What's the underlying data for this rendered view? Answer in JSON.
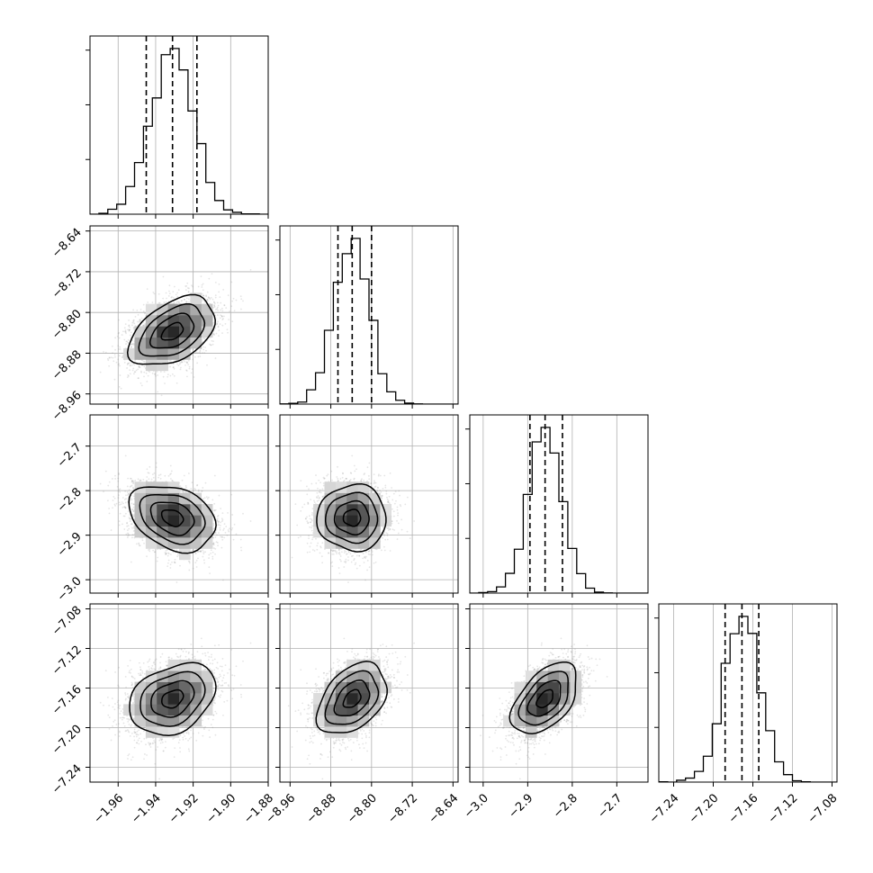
{
  "chart_data": {
    "type": "corner",
    "title": "",
    "parameters": [
      {
        "index": 0,
        "range": [
          -1.975,
          -1.88
        ],
        "median": -1.931,
        "q16": -1.945,
        "q84": -1.918,
        "sigma": 0.0115,
        "ticks": [
          -1.96,
          -1.94,
          -1.92,
          -1.9,
          -1.88
        ],
        "tick_labels": [
          "−1.96",
          "−1.94",
          "−1.92",
          "−1.90",
          "−1.88"
        ]
      },
      {
        "index": 1,
        "range": [
          -8.98,
          -8.63
        ],
        "median": -8.838,
        "q16": -8.866,
        "q84": -8.8,
        "sigma": 0.034,
        "ticks": [
          -8.96,
          -8.88,
          -8.8,
          -8.72,
          -8.64
        ],
        "tick_labels": [
          "−8.96",
          "−8.88",
          "−8.80",
          "−8.72",
          "−8.64"
        ]
      },
      {
        "index": 2,
        "range": [
          -3.03,
          -2.63
        ],
        "median": -2.861,
        "q16": -2.895,
        "q84": -2.822,
        "sigma": 0.037,
        "ticks": [
          -3.0,
          -2.9,
          -2.8,
          -2.7
        ],
        "tick_labels": [
          "−3.0",
          "−2.9",
          "−2.8",
          "−2.7"
        ]
      },
      {
        "index": 3,
        "range": [
          -7.255,
          -7.075
        ],
        "median": -7.171,
        "q16": -7.188,
        "q84": -7.154,
        "sigma": 0.018,
        "ticks": [
          -7.24,
          -7.2,
          -7.16,
          -7.12,
          -7.08
        ],
        "tick_labels": [
          "−7.24",
          "−7.20",
          "−7.16",
          "−7.12",
          "−7.08"
        ]
      }
    ],
    "correlations": {
      "1,0": 0.45,
      "2,0": -0.3,
      "2,1": 0.0,
      "3,0": 0.3,
      "3,1": 0.4,
      "3,2": 0.5
    },
    "hist_bins": 20,
    "contour_levels_sigma": [
      0.5,
      1.0,
      1.5,
      2.0
    ],
    "grid": true,
    "colors": {
      "points": "#888888",
      "lines": "#000000",
      "grid": "#b0b0b0"
    }
  }
}
